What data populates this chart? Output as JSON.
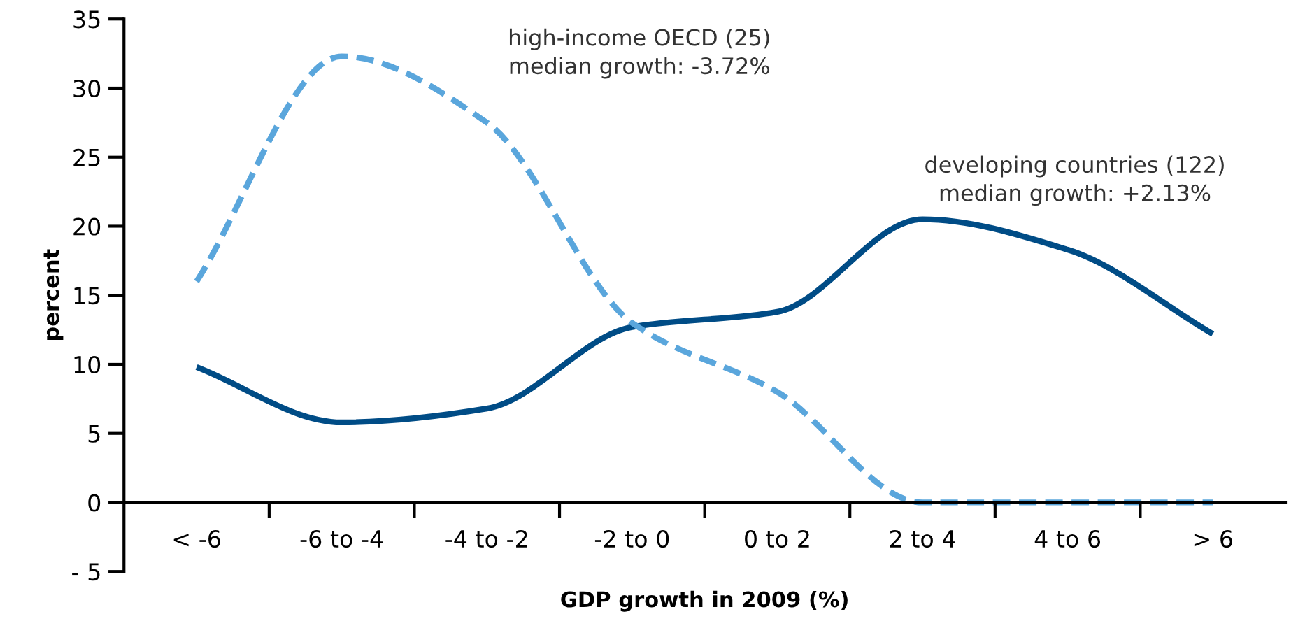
{
  "chart_data": {
    "type": "line",
    "xlabel": "GDP growth in 2009 (%)",
    "ylabel": "percent",
    "categories": [
      "< -6",
      "-6 to -4",
      "-4 to -2",
      "-2 to 0",
      "0 to 2",
      "2 to 4",
      "4 to 6",
      "> 6"
    ],
    "series": [
      {
        "name": "developing countries (122)\nmedian growth: +2.13%",
        "color": "#004c86",
        "line_style": "solid",
        "values": [
          9.8,
          5.8,
          6.8,
          12.7,
          13.8,
          20.5,
          18.3,
          12.2
        ]
      },
      {
        "name": "high-income OECD (25)\nmedian growth: -3.72%",
        "color": "#5aa6dc",
        "line_style": "dashed",
        "values": [
          16,
          32.3,
          27.5,
          13,
          8,
          0,
          0,
          0
        ]
      }
    ],
    "ylim": [
      -5,
      35
    ],
    "yticks": [
      {
        "value": -5,
        "label": "- 5"
      },
      0,
      5,
      10,
      15,
      20,
      25,
      30,
      35
    ],
    "grid": false,
    "legend": false,
    "marker": "none"
  }
}
